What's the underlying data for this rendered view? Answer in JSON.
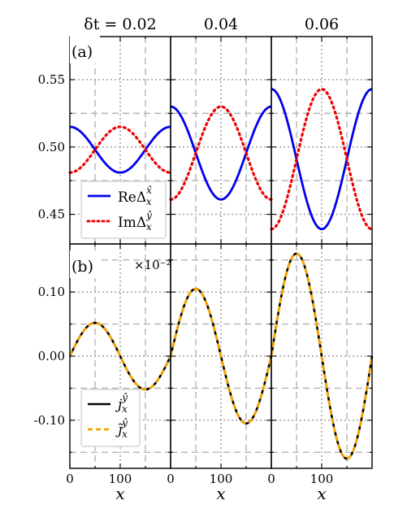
{
  "chart_data": [
    {
      "type": "line",
      "panel": "(a)",
      "column_titles": [
        "δt = 0.02",
        "0.04",
        "0.06"
      ],
      "ylim": [
        0.428,
        0.582
      ],
      "yticks": [
        0.45,
        0.5,
        0.55
      ],
      "ytick_labels": [
        "0.45",
        "0.50",
        "0.55"
      ],
      "xlim": [
        0,
        200
      ],
      "grid": true,
      "legend_location": "lower-left",
      "legend": [
        "ReΔ",
        "ImΔ"
      ],
      "series": [
        {
          "name": "Re Δ",
          "color": "#0000ee",
          "style": "solid",
          "columns": [
            {
              "x": [
                0,
                50,
                100,
                150,
                200
              ],
              "y": [
                0.515,
                0.498,
                0.481,
                0.498,
                0.515
              ]
            },
            {
              "x": [
                0,
                50,
                100,
                150,
                200
              ],
              "y": [
                0.53,
                0.495,
                0.461,
                0.495,
                0.53
              ]
            },
            {
              "x": [
                0,
                50,
                100,
                150,
                200
              ],
              "y": [
                0.543,
                0.491,
                0.439,
                0.491,
                0.543
              ]
            }
          ]
        },
        {
          "name": "Im Δ",
          "color": "#ee0000",
          "style": "dotted",
          "columns": [
            {
              "x": [
                0,
                50,
                100,
                150,
                200
              ],
              "y": [
                0.481,
                0.498,
                0.515,
                0.498,
                0.481
              ]
            },
            {
              "x": [
                0,
                50,
                100,
                150,
                200
              ],
              "y": [
                0.461,
                0.495,
                0.53,
                0.495,
                0.461
              ]
            },
            {
              "x": [
                0,
                50,
                100,
                150,
                200
              ],
              "y": [
                0.439,
                0.491,
                0.543,
                0.491,
                0.439
              ]
            }
          ]
        }
      ]
    },
    {
      "type": "line",
      "panel": "(b)",
      "scale_note": "×10⁻²",
      "ylim": [
        -0.175,
        0.175
      ],
      "yticks": [
        -0.1,
        0.0,
        0.1
      ],
      "ytick_labels": [
        "-0.10",
        "0.00",
        "0.10"
      ],
      "xlim": [
        0,
        200
      ],
      "xticks": [
        0,
        100
      ],
      "xtick_labels": [
        "0",
        "100"
      ],
      "xlabel": "x",
      "grid": true,
      "legend_location": "lower-left",
      "legend": [
        "j",
        "j̃"
      ],
      "series": [
        {
          "name": "j",
          "color": "#000000",
          "style": "solid",
          "columns": [
            {
              "x": [
                0,
                50,
                100,
                150,
                200
              ],
              "y": [
                0.0,
                0.052,
                0.0,
                -0.052,
                0.0
              ]
            },
            {
              "x": [
                0,
                50,
                100,
                150,
                200
              ],
              "y": [
                0.0,
                0.105,
                0.0,
                -0.105,
                0.0
              ]
            },
            {
              "x": [
                0,
                50,
                100,
                150,
                200
              ],
              "y": [
                0.0,
                0.16,
                0.0,
                -0.16,
                0.0
              ]
            }
          ]
        },
        {
          "name": "j̃",
          "color": "#f5a300",
          "style": "dashed",
          "columns": [
            {
              "x": [
                0,
                50,
                100,
                150,
                200
              ],
              "y": [
                0.0,
                0.052,
                0.0,
                -0.052,
                0.0
              ]
            },
            {
              "x": [
                0,
                50,
                100,
                150,
                200
              ],
              "y": [
                0.0,
                0.105,
                0.0,
                -0.105,
                0.0
              ]
            },
            {
              "x": [
                0,
                50,
                100,
                150,
                200
              ],
              "y": [
                0.0,
                0.16,
                0.0,
                -0.16,
                0.0
              ]
            }
          ]
        }
      ]
    }
  ]
}
